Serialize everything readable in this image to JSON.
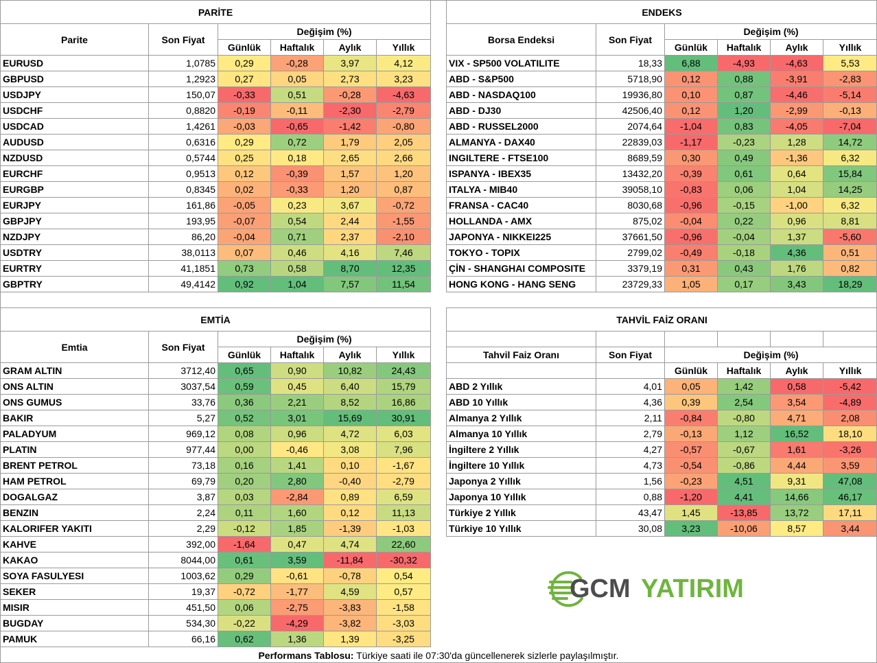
{
  "parite": {
    "title": "PARİTE",
    "col_name": "Parite",
    "col_price": "Son Fiyat",
    "col_change": "Değişim (%)",
    "sub": [
      "Günlük",
      "Haftalık",
      "Aylık",
      "Yıllık"
    ],
    "rows": [
      {
        "name": "EURUSD",
        "price": "1,0785",
        "v": [
          "0,29",
          "-0,28",
          "3,97",
          "4,12"
        ]
      },
      {
        "name": "GBPUSD",
        "price": "1,2923",
        "v": [
          "0,27",
          "0,05",
          "2,73",
          "3,23"
        ]
      },
      {
        "name": "USDJPY",
        "price": "150,07",
        "v": [
          "-0,33",
          "0,51",
          "-0,28",
          "-4,63"
        ]
      },
      {
        "name": "USDCHF",
        "price": "0,8820",
        "v": [
          "-0,19",
          "-0,11",
          "-2,30",
          "-2,79"
        ]
      },
      {
        "name": "USDCAD",
        "price": "1,4261",
        "v": [
          "-0,03",
          "-0,65",
          "-1,42",
          "-0,80"
        ]
      },
      {
        "name": "AUDUSD",
        "price": "0,6316",
        "v": [
          "0,29",
          "0,72",
          "1,79",
          "2,05"
        ]
      },
      {
        "name": "NZDUSD",
        "price": "0,5744",
        "v": [
          "0,25",
          "0,18",
          "2,65",
          "2,66"
        ]
      },
      {
        "name": "EURCHF",
        "price": "0,9513",
        "v": [
          "0,12",
          "-0,39",
          "1,57",
          "1,20"
        ]
      },
      {
        "name": "EURGBP",
        "price": "0,8345",
        "v": [
          "0,02",
          "-0,33",
          "1,20",
          "0,87"
        ]
      },
      {
        "name": "EURJPY",
        "price": "161,86",
        "v": [
          "-0,05",
          "0,23",
          "3,67",
          "-0,72"
        ]
      },
      {
        "name": "GBPJPY",
        "price": "193,95",
        "v": [
          "-0,07",
          "0,54",
          "2,44",
          "-1,55"
        ]
      },
      {
        "name": "NZDJPY",
        "price": "86,20",
        "v": [
          "-0,04",
          "0,71",
          "2,37",
          "-2,10"
        ]
      },
      {
        "name": "USDTRY",
        "price": "38,0113",
        "v": [
          "0,07",
          "0,46",
          "4,16",
          "7,46"
        ]
      },
      {
        "name": "EURTRY",
        "price": "41,1851",
        "v": [
          "0,73",
          "0,58",
          "8,70",
          "12,35"
        ]
      },
      {
        "name": "GBPTRY",
        "price": "49,4142",
        "v": [
          "0,92",
          "1,04",
          "7,57",
          "11,54"
        ]
      }
    ]
  },
  "endeks": {
    "title": "ENDEKS",
    "col_name": "Borsa Endeksi",
    "col_price": "Son Fiyat",
    "col_change": "Değişim (%)",
    "sub": [
      "Günlük",
      "Haftalık",
      "Aylık",
      "Yıllık"
    ],
    "rows": [
      {
        "name": "VIX  - SP500 VOLATILITE",
        "price": "18,33",
        "v": [
          "6,88",
          "-4,93",
          "-4,63",
          "5,53"
        ]
      },
      {
        "name": "ABD - S&P500",
        "price": "5718,90",
        "v": [
          "0,12",
          "0,88",
          "-3,91",
          "-2,83"
        ]
      },
      {
        "name": "ABD - NASDAQ100",
        "price": "19936,80",
        "v": [
          "0,10",
          "0,87",
          "-4,46",
          "-5,14"
        ]
      },
      {
        "name": "ABD - DJ30",
        "price": "42506,40",
        "v": [
          "0,12",
          "1,20",
          "-2,99",
          "-0,13"
        ]
      },
      {
        "name": "ABD - RUSSEL2000",
        "price": "2074,64",
        "v": [
          "-1,04",
          "0,83",
          "-4,05",
          "-7,04"
        ]
      },
      {
        "name": "ALMANYA - DAX40",
        "price": "22839,03",
        "v": [
          "-1,17",
          "-0,23",
          "1,28",
          "14,72"
        ]
      },
      {
        "name": "INGILTERE - FTSE100",
        "price": "8689,59",
        "v": [
          "0,30",
          "0,49",
          "-1,36",
          "6,32"
        ]
      },
      {
        "name": "ISPANYA - IBEX35",
        "price": "13432,20",
        "v": [
          "-0,39",
          "0,61",
          "0,64",
          "15,84"
        ]
      },
      {
        "name": "ITALYA - MIB40",
        "price": "39058,10",
        "v": [
          "-0,83",
          "0,06",
          "1,04",
          "14,25"
        ]
      },
      {
        "name": "FRANSA - CAC40",
        "price": "8030,68",
        "v": [
          "-0,96",
          "-0,15",
          "-1,00",
          "6,32"
        ]
      },
      {
        "name": "HOLLANDA - AMX",
        "price": "875,02",
        "v": [
          "-0,04",
          "0,22",
          "0,96",
          "8,81"
        ]
      },
      {
        "name": "JAPONYA - NIKKEI225",
        "price": "37661,50",
        "v": [
          "-0,96",
          "-0,04",
          "1,37",
          "-5,60"
        ]
      },
      {
        "name": "TOKYO - TOPIX",
        "price": "2799,02",
        "v": [
          "-0,49",
          "-0,18",
          "4,36",
          "0,51"
        ]
      },
      {
        "name": "ÇİN - SHANGHAI COMPOSITE",
        "price": "3379,19",
        "v": [
          "0,31",
          "0,43",
          "1,76",
          "0,82"
        ]
      },
      {
        "name": "HONG KONG - HANG SENG",
        "price": "23729,33",
        "v": [
          "1,05",
          "0,17",
          "3,43",
          "18,29"
        ]
      }
    ]
  },
  "emtia": {
    "title": "EMTİA",
    "col_name": "Emtia",
    "col_price": "Son Fiyat",
    "col_change": "Değişim (%)",
    "sub": [
      "Günlük",
      "Haftalık",
      "Aylık",
      "Yıllık"
    ],
    "rows": [
      {
        "name": "GRAM ALTIN",
        "price": "3712,40",
        "v": [
          "0,65",
          "0,90",
          "10,82",
          "24,43"
        ]
      },
      {
        "name": "ONS ALTIN",
        "price": "3037,54",
        "v": [
          "0,59",
          "0,45",
          "6,40",
          "15,79"
        ]
      },
      {
        "name": "ONS GUMUS",
        "price": "33,76",
        "v": [
          "0,36",
          "2,21",
          "8,52",
          "16,86"
        ]
      },
      {
        "name": "BAKIR",
        "price": "5,27",
        "v": [
          "0,52",
          "3,01",
          "15,69",
          "30,91"
        ]
      },
      {
        "name": "PALADYUM",
        "price": "969,12",
        "v": [
          "0,08",
          "0,96",
          "4,72",
          "6,03"
        ]
      },
      {
        "name": "PLATIN",
        "price": "977,44",
        "v": [
          "0,00",
          "-0,46",
          "3,08",
          "7,96"
        ]
      },
      {
        "name": "BRENT PETROL",
        "price": "73,18",
        "v": [
          "0,16",
          "1,41",
          "0,10",
          "-1,67"
        ]
      },
      {
        "name": "HAM PETROL",
        "price": "69,79",
        "v": [
          "0,20",
          "2,80",
          "-0,40",
          "-2,79"
        ]
      },
      {
        "name": "DOGALGAZ",
        "price": "3,87",
        "v": [
          "0,03",
          "-2,84",
          "0,89",
          "6,59"
        ]
      },
      {
        "name": "BENZIN",
        "price": "2,24",
        "v": [
          "0,11",
          "1,60",
          "0,12",
          "11,13"
        ]
      },
      {
        "name": "KALORIFER YAKITI",
        "price": "2,29",
        "v": [
          "-0,12",
          "1,85",
          "-1,39",
          "-1,03"
        ]
      },
      {
        "name": "KAHVE",
        "price": "392,00",
        "v": [
          "-1,64",
          "0,47",
          "4,74",
          "22,60"
        ]
      },
      {
        "name": "KAKAO",
        "price": "8044,00",
        "v": [
          "0,61",
          "3,59",
          "-11,84",
          "-30,32"
        ]
      },
      {
        "name": "SOYA FASULYESI",
        "price": "1003,62",
        "v": [
          "0,29",
          "-0,61",
          "-0,78",
          "0,54"
        ]
      },
      {
        "name": "SEKER",
        "price": "19,37",
        "v": [
          "-0,72",
          "-1,77",
          "4,59",
          "0,57"
        ]
      },
      {
        "name": "MISIR",
        "price": "451,50",
        "v": [
          "0,06",
          "-2,75",
          "-3,83",
          "-1,58"
        ]
      },
      {
        "name": "BUGDAY",
        "price": "534,30",
        "v": [
          "-0,22",
          "-4,29",
          "-3,82",
          "-3,03"
        ]
      },
      {
        "name": "PAMUK",
        "price": "66,16",
        "v": [
          "0,62",
          "1,36",
          "1,39",
          "-3,25"
        ]
      }
    ]
  },
  "tahvil": {
    "title": "TAHVİL FAİZ ORANI",
    "col_name": "Tahvil Faiz Oranı",
    "col_price": "Son Fiyat",
    "col_change": "Değişim (%)",
    "sub": [
      "Günlük",
      "Haftalık",
      "Aylık",
      "Yıllık"
    ],
    "rows": [
      {
        "name": "ABD 2 Yıllık",
        "price": "4,01",
        "v": [
          "0,05",
          "1,42",
          "0,58",
          "-5,42"
        ]
      },
      {
        "name": "ABD 10 Yıllık",
        "price": "4,36",
        "v": [
          "0,39",
          "2,54",
          "3,54",
          "-4,89"
        ]
      },
      {
        "name": "Almanya 2 Yıllık",
        "price": "2,11",
        "v": [
          "-0,84",
          "-0,80",
          "4,71",
          "2,08"
        ]
      },
      {
        "name": "Almanya 10 Yıllık",
        "price": "2,79",
        "v": [
          "-0,13",
          "1,12",
          "16,52",
          "18,10"
        ]
      },
      {
        "name": "İngiltere 2 Yıllık",
        "price": "4,27",
        "v": [
          "-0,57",
          "-0,67",
          "1,61",
          "-3,26"
        ]
      },
      {
        "name": "İngiltere 10 Yıllık",
        "price": "4,73",
        "v": [
          "-0,54",
          "-0,86",
          "4,44",
          "3,59"
        ]
      },
      {
        "name": "Japonya 2 Yıllık",
        "price": "1,56",
        "v": [
          "-0,23",
          "4,51",
          "9,31",
          "47,08"
        ]
      },
      {
        "name": "Japonya 10 Yıllık",
        "price": "0,88",
        "v": [
          "-1,20",
          "4,41",
          "14,66",
          "46,17"
        ]
      },
      {
        "name": "Türkiye 2 Yıllık",
        "price": "43,47",
        "v": [
          "1,45",
          "-13,85",
          "13,72",
          "17,11"
        ]
      },
      {
        "name": "Türkiye 10 Yıllık",
        "price": "30,08",
        "v": [
          "3,23",
          "-10,06",
          "8,57",
          "3,44"
        ]
      }
    ]
  },
  "logo": {
    "part1": "GCM",
    "part2": "YATIRIM"
  },
  "footer": {
    "bold": "Performans Tablosu:",
    "text": " Türkiye saati ile 07:30'da güncellenerek sizlerle paylaşılmıştır."
  },
  "colors": {
    "green": "#63be7b",
    "yellow": "#ffeb84",
    "red": "#f8696b",
    "grid": "#9a9a9a",
    "logo_green": "#6fb43f",
    "logo_gray": "#4d4d4d"
  }
}
